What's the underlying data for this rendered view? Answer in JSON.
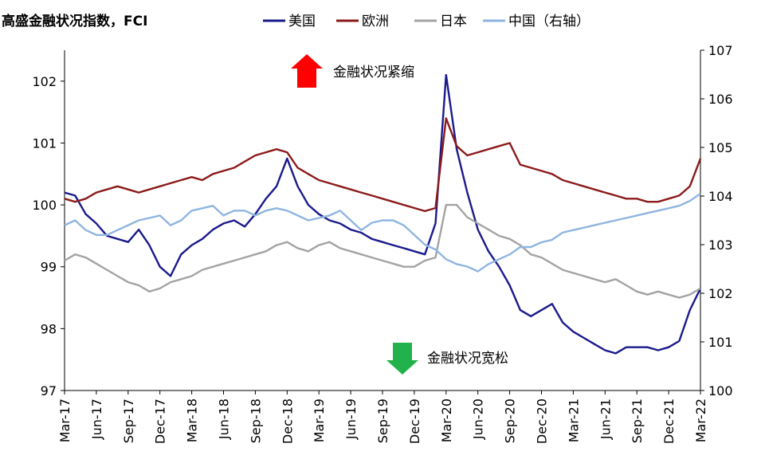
{
  "chart_data": {
    "type": "line",
    "title": "高盛金融状况指数，FCI",
    "legend": {
      "placement": "top"
    },
    "x_ticks": [
      "Mar-17",
      "Jun-17",
      "Sep-17",
      "Dec-17",
      "Mar-18",
      "Jun-18",
      "Sep-18",
      "Dec-18",
      "Mar-19",
      "Jun-19",
      "Sep-19",
      "Dec-19",
      "Mar-20",
      "Jun-20",
      "Sep-20",
      "Dec-20",
      "Mar-21",
      "Jun-21",
      "Sep-21",
      "Dec-21",
      "Mar-22"
    ],
    "y_left": {
      "range": [
        97,
        102.5
      ],
      "ticks": [
        "97",
        "98",
        "99",
        "100",
        "101",
        "102"
      ]
    },
    "y_right": {
      "range": [
        100,
        107
      ],
      "ticks": [
        "100",
        "101",
        "102",
        "103",
        "104",
        "105",
        "106",
        "107"
      ]
    },
    "annotations": {
      "tightening": "金融状况紧缩",
      "loosening": "金融状况宽松"
    },
    "series": [
      {
        "name": "美国",
        "color": "#1a1a8c",
        "axis": "left",
        "values": [
          100.2,
          100.15,
          99.85,
          99.7,
          99.5,
          99.45,
          99.4,
          99.6,
          99.35,
          99.0,
          98.85,
          99.2,
          99.35,
          99.45,
          99.6,
          99.7,
          99.75,
          99.65,
          99.85,
          100.1,
          100.3,
          100.75,
          100.3,
          100.0,
          99.85,
          99.75,
          99.7,
          99.6,
          99.55,
          99.45,
          99.4,
          99.35,
          99.3,
          99.25,
          99.2,
          99.7,
          102.1,
          100.9,
          100.2,
          99.6,
          99.25,
          99.0,
          98.7,
          98.3,
          98.2,
          98.3,
          98.4,
          98.1,
          97.95,
          97.85,
          97.75,
          97.65,
          97.6,
          97.7,
          97.7,
          97.7,
          97.65,
          97.7,
          97.8,
          98.3,
          98.65
        ]
      },
      {
        "name": "欧洲",
        "color": "#8b1a1a",
        "axis": "left",
        "values": [
          100.1,
          100.05,
          100.1,
          100.2,
          100.25,
          100.3,
          100.25,
          100.2,
          100.25,
          100.3,
          100.35,
          100.4,
          100.45,
          100.4,
          100.5,
          100.55,
          100.6,
          100.7,
          100.8,
          100.85,
          100.9,
          100.85,
          100.6,
          100.5,
          100.4,
          100.35,
          100.3,
          100.25,
          100.2,
          100.15,
          100.1,
          100.05,
          100.0,
          99.95,
          99.9,
          99.95,
          101.4,
          100.95,
          100.8,
          100.85,
          100.9,
          100.95,
          101.0,
          100.65,
          100.6,
          100.55,
          100.5,
          100.4,
          100.35,
          100.3,
          100.25,
          100.2,
          100.15,
          100.1,
          100.1,
          100.05,
          100.05,
          100.1,
          100.15,
          100.3,
          100.75
        ]
      },
      {
        "name": "日本",
        "color": "#a3a3a3",
        "axis": "left",
        "values": [
          99.1,
          99.2,
          99.15,
          99.05,
          98.95,
          98.85,
          98.75,
          98.7,
          98.6,
          98.65,
          98.75,
          98.8,
          98.85,
          98.95,
          99.0,
          99.05,
          99.1,
          99.15,
          99.2,
          99.25,
          99.35,
          99.4,
          99.3,
          99.25,
          99.35,
          99.4,
          99.3,
          99.25,
          99.2,
          99.15,
          99.1,
          99.05,
          99.0,
          99.0,
          99.1,
          99.15,
          100.0,
          100.0,
          99.8,
          99.7,
          99.6,
          99.5,
          99.45,
          99.35,
          99.2,
          99.15,
          99.05,
          98.95,
          98.9,
          98.85,
          98.8,
          98.75,
          98.8,
          98.7,
          98.6,
          98.55,
          98.6,
          98.55,
          98.5,
          98.55,
          98.65
        ]
      },
      {
        "name": "中国（右轴）",
        "color": "#8fb5e0",
        "axis": "right",
        "values": [
          103.4,
          103.5,
          103.3,
          103.2,
          103.2,
          103.3,
          103.4,
          103.5,
          103.55,
          103.6,
          103.4,
          103.5,
          103.7,
          103.75,
          103.8,
          103.6,
          103.7,
          103.7,
          103.6,
          103.7,
          103.75,
          103.7,
          103.6,
          103.5,
          103.55,
          103.6,
          103.7,
          103.5,
          103.3,
          103.45,
          103.5,
          103.5,
          103.4,
          103.2,
          103.0,
          102.9,
          102.7,
          102.6,
          102.55,
          102.45,
          102.6,
          102.7,
          102.8,
          102.95,
          102.95,
          103.05,
          103.1,
          103.25,
          103.3,
          103.35,
          103.4,
          103.45,
          103.5,
          103.55,
          103.6,
          103.65,
          103.7,
          103.75,
          103.8,
          103.9,
          104.05
        ]
      }
    ]
  }
}
